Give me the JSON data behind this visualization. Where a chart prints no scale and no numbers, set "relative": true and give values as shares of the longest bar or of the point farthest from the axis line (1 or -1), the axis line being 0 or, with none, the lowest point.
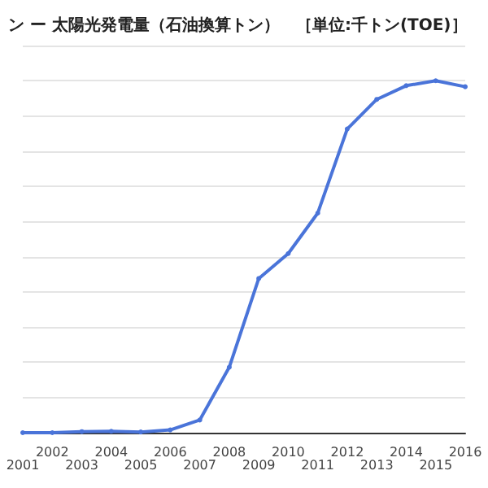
{
  "chart_data": {
    "type": "line",
    "title": "ン ー 太陽光発電量（石油換算トン）　［単位:千トン(TOE)］",
    "categories": [
      "2001",
      "2002",
      "2003",
      "2004",
      "2005",
      "2006",
      "2007",
      "2008",
      "2009",
      "2010",
      "2011",
      "2012",
      "2013",
      "2014",
      "2015",
      "2016"
    ],
    "series": [
      {
        "color": "#4a74d9",
        "values": [
          0,
          0,
          0.003,
          0.004,
          0.002,
          0.008,
          0.036,
          0.186,
          0.438,
          0.509,
          0.624,
          0.863,
          0.947,
          0.986,
          1,
          0.983
        ]
      }
    ],
    "relative": true,
    "grid": "y",
    "marker": "circle",
    "line_style": "solid"
  }
}
